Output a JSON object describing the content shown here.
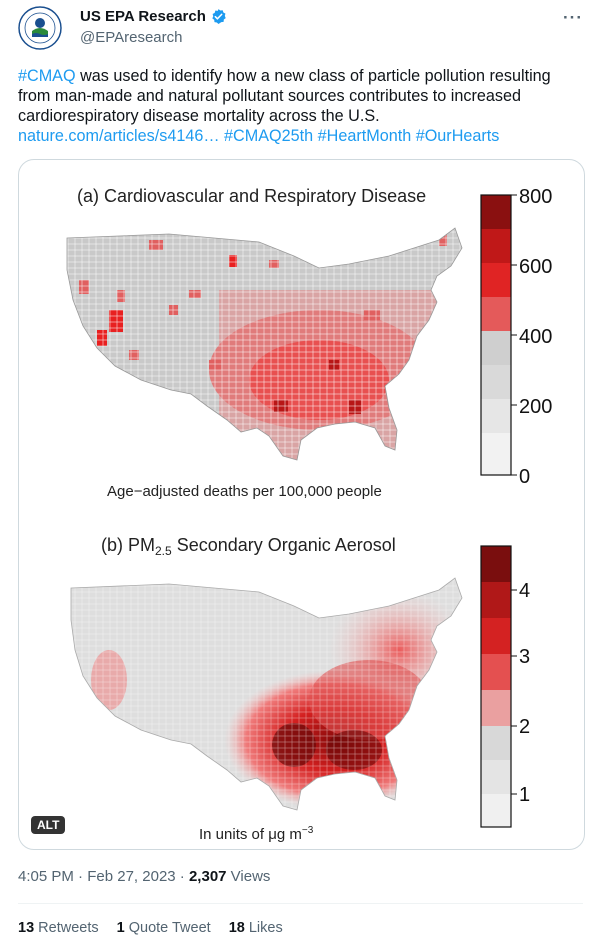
{
  "author": {
    "display_name": "US EPA Research",
    "handle": "@EPAresearch",
    "avatar_icon": "epa-seal-icon",
    "verified_icon": "verified-badge-icon"
  },
  "menu_icon": "more-options-icon",
  "tweet": {
    "hashtag_cmaq": "#CMAQ",
    "text_body": " was used to identify how a new class of particle pollution resulting from man-made and natural pollutant sources contributes to increased cardiorespiratory disease mortality across the U.S.",
    "link": "nature.com/articles/s4146…",
    "hashtags": [
      "#CMAQ25th",
      "#HeartMonth",
      "#OurHearts"
    ]
  },
  "media": {
    "alt_label": "ALT",
    "panel_a": {
      "title": "(a) Cardiovascular and Respiratory Disease",
      "caption": "Age−adjusted deaths per 100,000 people",
      "colorbar_ticks": [
        "800",
        "600",
        "400",
        "200",
        "0"
      ]
    },
    "panel_b": {
      "title_prefix": "(b) PM",
      "title_sub": "2.5",
      "title_suffix": " Secondary Organic Aerosol",
      "caption_prefix": "In units of μg m",
      "caption_sup": "−3",
      "colorbar_ticks": [
        "4",
        "3",
        "2",
        "1"
      ]
    }
  },
  "meta": {
    "time": "4:05 PM",
    "separator": " · ",
    "date": "Feb 27, 2023",
    "views_count": "2,307",
    "views_label": " Views"
  },
  "stats": {
    "retweets_count": "13",
    "retweets_label": " Retweets",
    "quotes_count": "1",
    "quotes_label": " Quote Tweet",
    "likes_count": "18",
    "likes_label": " Likes"
  },
  "colors": {
    "link": "#1d9bf0",
    "secondary_text": "#536471",
    "map_red": "#e02020",
    "map_gray": "#cfcfcf"
  }
}
